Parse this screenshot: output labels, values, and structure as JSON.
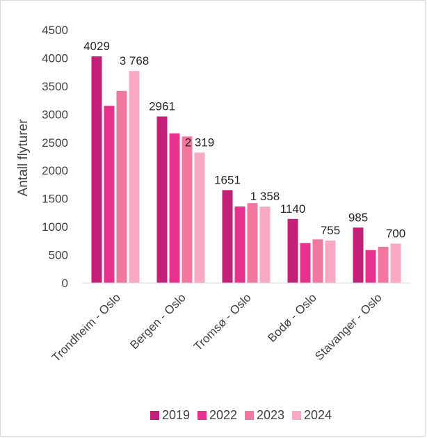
{
  "chart_data": {
    "type": "bar",
    "title": "",
    "xlabel": "",
    "ylabel": "Antall flyturer",
    "ylim": [
      0,
      4500
    ],
    "yticks": [
      "0",
      "500",
      "1000",
      "1500",
      "2000",
      "2500",
      "3000",
      "3500",
      "4000",
      "4500"
    ],
    "grid": false,
    "legend_position": "bottom",
    "categories": [
      "Trondheim - Oslo",
      "Bergen - Oslo",
      "Tromsø - Oslo",
      "Bodø - Oslo",
      "Stavanger - Oslo"
    ],
    "series": [
      {
        "name": "2019",
        "color": "#c4207a",
        "values": [
          4029,
          2961,
          1651,
          1140,
          985
        ]
      },
      {
        "name": "2022",
        "color": "#e8318f",
        "values": [
          3150,
          2660,
          1360,
          710,
          585
        ]
      },
      {
        "name": "2023",
        "color": "#f2779f",
        "values": [
          3415,
          2605,
          1420,
          775,
          645
        ]
      },
      {
        "name": "2024",
        "color": "#f9a9c6",
        "values": [
          3768,
          2319,
          1358,
          755,
          700
        ]
      }
    ],
    "data_labels": [
      {
        "category": 0,
        "series": 0,
        "text": "4029"
      },
      {
        "category": 0,
        "series": 3,
        "text": "3 768"
      },
      {
        "category": 1,
        "series": 0,
        "text": "2961"
      },
      {
        "category": 1,
        "series": 3,
        "text": "2 319"
      },
      {
        "category": 2,
        "series": 0,
        "text": "1651"
      },
      {
        "category": 2,
        "series": 3,
        "text": "1 358"
      },
      {
        "category": 3,
        "series": 0,
        "text": "1140"
      },
      {
        "category": 3,
        "series": 3,
        "text": "755"
      },
      {
        "category": 4,
        "series": 0,
        "text": "985"
      },
      {
        "category": 4,
        "series": 3,
        "text": "700"
      }
    ]
  }
}
